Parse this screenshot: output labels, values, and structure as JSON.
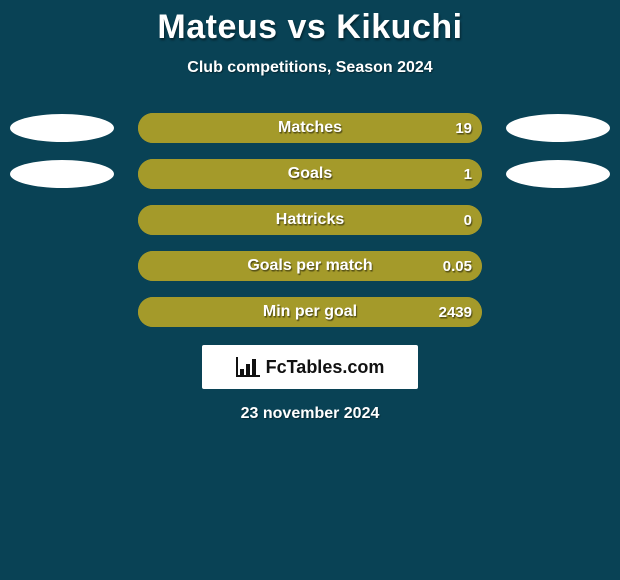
{
  "background_color": "#094255",
  "title": {
    "text": "Mateus vs Kikuchi",
    "color": "#ffffff",
    "fontsize": 34,
    "fontweight": 900
  },
  "subtitle": {
    "text": "Club competitions, Season 2024",
    "color": "#ffffff",
    "fontsize": 16,
    "fontweight": 700
  },
  "ellipse": {
    "fill": "#ffffff",
    "width": 104,
    "height": 28
  },
  "bar": {
    "track_width": 344,
    "track_height": 30,
    "radius": 15,
    "left_player_color": "#a49a2a",
    "right_player_color": "#a49a2a",
    "track_color": "#a49a2a"
  },
  "comparison": [
    {
      "label": "Matches",
      "left": {
        "value": "",
        "pct": 0,
        "show_ellipse": true
      },
      "right": {
        "value": "19",
        "pct": 100,
        "show_ellipse": true
      }
    },
    {
      "label": "Goals",
      "left": {
        "value": "",
        "pct": 0,
        "show_ellipse": true
      },
      "right": {
        "value": "1",
        "pct": 100,
        "show_ellipse": true
      }
    },
    {
      "label": "Hattricks",
      "left": {
        "value": "",
        "pct": 0,
        "show_ellipse": false
      },
      "right": {
        "value": "0",
        "pct": 100,
        "show_ellipse": false
      }
    },
    {
      "label": "Goals per match",
      "left": {
        "value": "",
        "pct": 0,
        "show_ellipse": false
      },
      "right": {
        "value": "0.05",
        "pct": 100,
        "show_ellipse": false
      }
    },
    {
      "label": "Min per goal",
      "left": {
        "value": "",
        "pct": 0,
        "show_ellipse": false
      },
      "right": {
        "value": "2439",
        "pct": 100,
        "show_ellipse": false
      }
    }
  ],
  "logo": {
    "text": "FcTables.com",
    "icon_name": "bar-chart-icon",
    "card_bg": "#ffffff",
    "text_color": "#111111"
  },
  "date": {
    "text": "23 november 2024",
    "color": "#ffffff",
    "fontsize": 16,
    "fontweight": 700
  }
}
